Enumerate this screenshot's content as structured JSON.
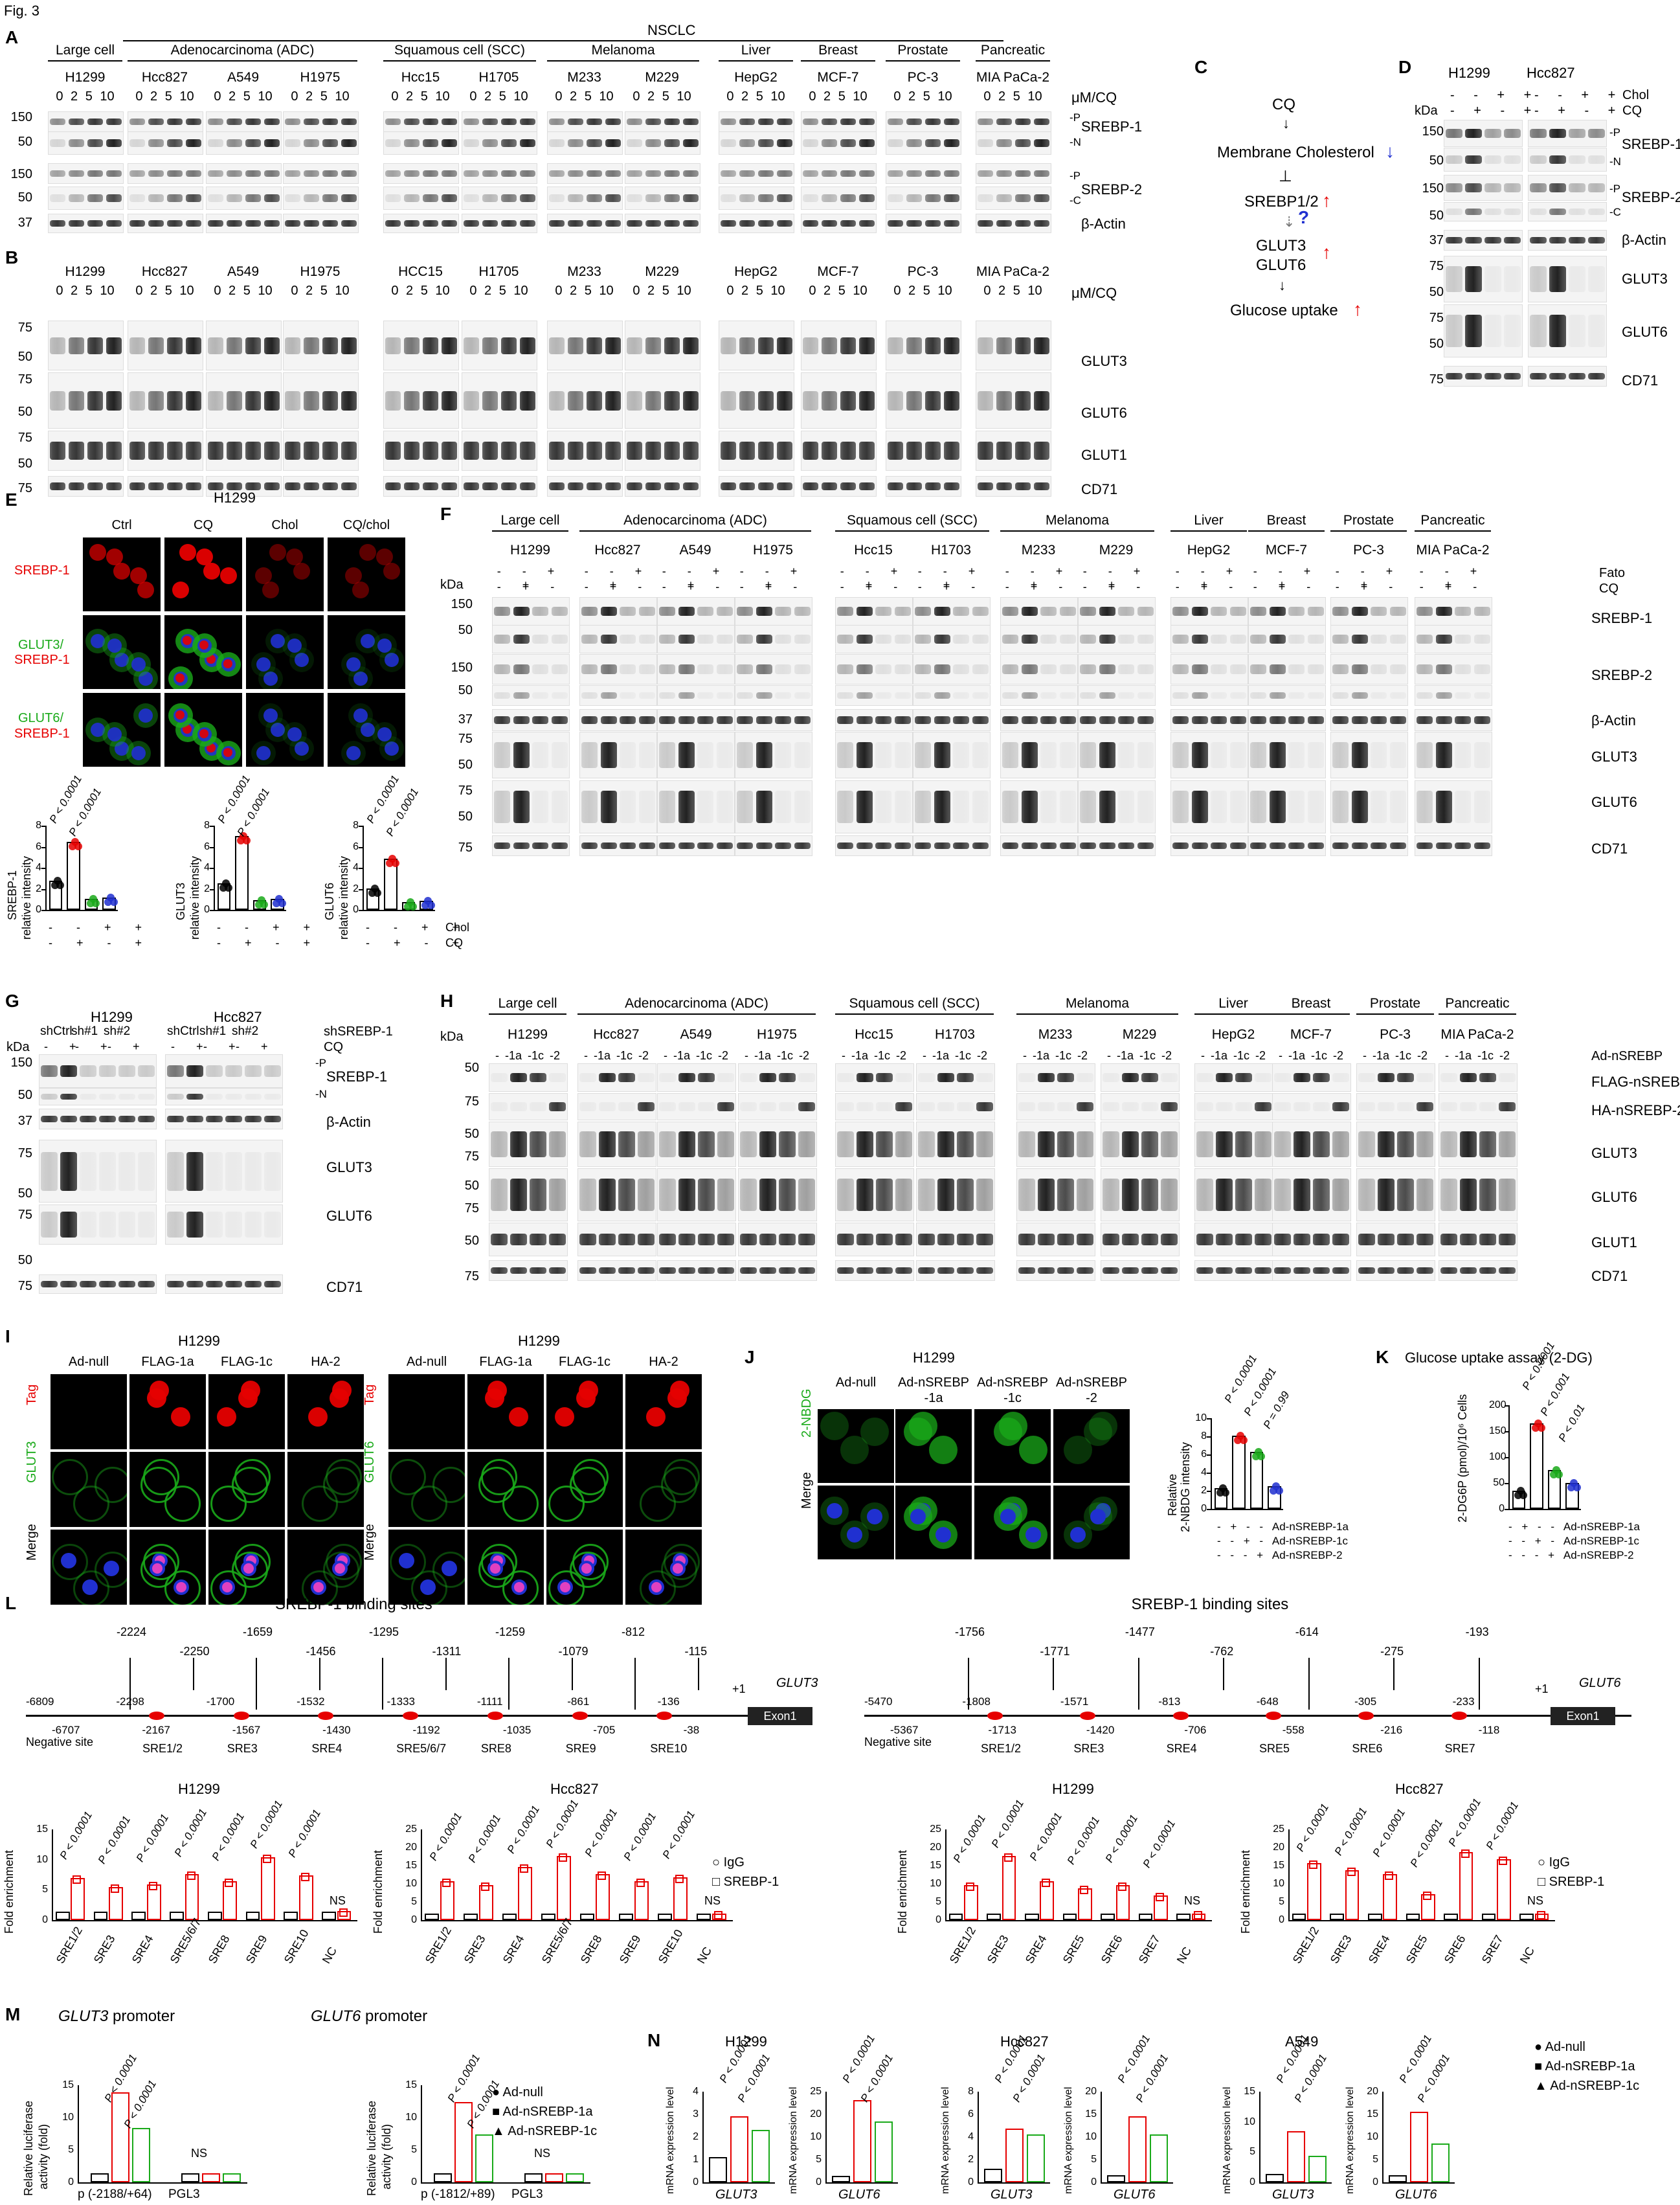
{
  "fig_label": "Fig. 3",
  "panels": {
    "A": "A",
    "B": "B",
    "C": "C",
    "D": "D",
    "E": "E",
    "F": "F",
    "G": "G",
    "H": "H",
    "I": "I",
    "J": "J",
    "K": "K",
    "L": "L",
    "M": "M",
    "N": "N"
  },
  "panel_A": {
    "nsclc": "NSCLC",
    "groups": [
      "Large cell",
      "Adenocarcinoma (ADC)",
      "Squamous cell (SCC)",
      "Melanoma",
      "Liver",
      "Breast",
      "Prostate",
      "Pancreatic"
    ],
    "lines": [
      "H1299",
      "Hcc827",
      "A549",
      "H1975",
      "Hcc15",
      "H1705",
      "M233",
      "M229",
      "HepG2",
      "MCF-7",
      "PC-3",
      "MIA PaCa-2"
    ],
    "doses": "0 2 5 10",
    "unit": "μM/CQ",
    "rows": [
      "SREBP-1",
      "SREBP-2",
      "β-Actin"
    ],
    "kda": [
      "150",
      "50",
      "150",
      "50",
      "37"
    ],
    "marks": [
      "-P",
      "-N",
      "-P",
      "-C"
    ]
  },
  "panel_B": {
    "lines": [
      "H1299",
      "Hcc827",
      "A549",
      "H1975",
      "HCC15",
      "H1705",
      "M233",
      "M229",
      "HepG2",
      "MCF-7",
      "PC-3",
      "MIA PaCa-2"
    ],
    "doses": "0 2 5 10",
    "unit": "μM/CQ",
    "rows": [
      "GLUT3",
      "GLUT6",
      "GLUT1",
      "CD71"
    ],
    "kda": [
      "75",
      "50",
      "75",
      "50",
      "75",
      "50",
      "75"
    ]
  },
  "panel_C": {
    "cq": "CQ",
    "chol": "Membrane Cholesterol",
    "srebp": "SREBP1/2",
    "q": "?",
    "glut3": "GLUT3",
    "glut6": "GLUT6",
    "uptake": "Glucose uptake"
  },
  "panel_D": {
    "lines": [
      "H1299",
      "Hcc827"
    ],
    "chol_label": "Chol",
    "cq_label": "CQ",
    "chol_signs": "- - + +",
    "cq_signs": "- + - +",
    "kda_label": "kDa",
    "rows": [
      "SREBP-1",
      "SREBP-2",
      "β-Actin",
      "GLUT3",
      "GLUT6",
      "CD71"
    ],
    "kda": [
      "150",
      "50",
      "150",
      "50",
      "37",
      "75",
      "50",
      "75",
      "50",
      "75"
    ],
    "marks": [
      "-P",
      "-N",
      "-P",
      "-C"
    ]
  },
  "panel_E": {
    "title": "H1299",
    "cols": [
      "Ctrl",
      "CQ",
      "Chol",
      "CQ/chol"
    ],
    "rows": [
      "SREBP-1",
      "GLUT3/",
      "SREBP-1",
      "GLUT6/",
      "SREBP-1"
    ],
    "charts": [
      {
        "ylabel1": "SREBP-1",
        "ylabel2": "relative intensity",
        "p1": "P < 0.0001",
        "p2": "P < 0.0001",
        "values": [
          2.5,
          6.2,
          0.8,
          0.9
        ],
        "yticks": [
          "0",
          "2",
          "4",
          "6",
          "8"
        ]
      },
      {
        "ylabel1": "GLUT3",
        "ylabel2": "relative intensity",
        "p1": "P < 0.0001",
        "p2": "P < 0.0001",
        "values": [
          2.3,
          6.8,
          0.7,
          0.8
        ],
        "yticks": [
          "0",
          "2",
          "4",
          "6",
          "8"
        ]
      },
      {
        "ylabel1": "GLUT6",
        "ylabel2": "relative intensity",
        "p1": "P < 0.0001",
        "p2": "P < 0.0001",
        "values": [
          1.8,
          4.6,
          0.5,
          0.6
        ],
        "yticks": [
          "0",
          "2",
          "4",
          "6",
          "8"
        ]
      }
    ],
    "chol_row": "- - + +",
    "cq_row": "- + - +",
    "chol_label": "Chol",
    "cq_label": "CQ"
  },
  "panel_F": {
    "groups": [
      "Large cell",
      "Adenocarcinoma (ADC)",
      "Squamous cell (SCC)",
      "Melanoma",
      "Liver",
      "Breast",
      "Prostate",
      "Pancreatic"
    ],
    "lines": [
      "H1299",
      "Hcc827",
      "A549",
      "H1975",
      "Hcc15",
      "H1703",
      "M233",
      "M229",
      "HepG2",
      "MCF-7",
      "PC-3",
      "MIA PaCa-2"
    ],
    "fato": "Fato",
    "cq": "CQ",
    "kda_label": "kDa",
    "rows": [
      "SREBP-1",
      "SREBP-2",
      "β-Actin",
      "GLUT3",
      "GLUT6",
      "CD71"
    ],
    "kda": [
      "150",
      "50",
      "150",
      "50",
      "37",
      "75",
      "50",
      "75",
      "50",
      "75"
    ],
    "marks": [
      "-P",
      "-N",
      "-P",
      "-C"
    ]
  },
  "panel_G": {
    "lines": [
      "H1299",
      "Hcc827"
    ],
    "sh": [
      "shCtrl",
      "sh#1",
      "sh#2"
    ],
    "shlabel": "shSREBP-1",
    "cq": "CQ",
    "kda_label": "kDa",
    "rows": [
      "SREBP-1",
      "β-Actin",
      "GLUT3",
      "GLUT6",
      "CD71"
    ],
    "kda": [
      "150",
      "50",
      "37",
      "75",
      "50",
      "75",
      "50",
      "75"
    ],
    "marks": [
      "-P",
      "-N"
    ]
  },
  "panel_H": {
    "groups": [
      "Large cell",
      "Adenocarcinoma (ADC)",
      "Squamous cell (SCC)",
      "Melanoma",
      "Liver",
      "Breast",
      "Prostate",
      "Pancreatic"
    ],
    "lines": [
      "H1299",
      "Hcc827",
      "A549",
      "H1975",
      "Hcc15",
      "H1703",
      "M233",
      "M229",
      "HepG2",
      "MCF-7",
      "PC-3",
      "MIA PaCa-2"
    ],
    "lanes": "- -1a -1c -2",
    "adlabel": "Ad-nSREBP",
    "kda_label": "kDa",
    "rows": [
      "FLAG-nSREBP-1",
      "HA-nSREBP-2",
      "GLUT3",
      "GLUT6",
      "GLUT1",
      "CD71"
    ],
    "kda": [
      "50",
      "75",
      "50",
      "75",
      "50",
      "75",
      "50",
      "75"
    ]
  },
  "panel_I": {
    "left": {
      "title": "H1299",
      "cols": [
        "Ad-null",
        "FLAG-1a",
        "FLAG-1c",
        "HA-2"
      ],
      "rows": [
        "Tag",
        "GLUT3",
        "Merge"
      ]
    },
    "right": {
      "title": "H1299",
      "cols": [
        "Ad-null",
        "FLAG-1a",
        "FLAG-1c",
        "HA-2"
      ],
      "rows": [
        "Tag",
        "GLUT6",
        "Merge"
      ]
    }
  },
  "panel_J": {
    "title": "H1299",
    "cols": [
      "Ad-null",
      "Ad-nSREBP\n-1a",
      "Ad-nSREBP\n-1c",
      "Ad-nSREBP\n-2"
    ],
    "rows": [
      "2-NBDG",
      "Merge"
    ],
    "ylabel1": "Relative",
    "ylabel2": "2-NBDG intensity",
    "p": [
      "P < 0.0001",
      "P < 0.0001",
      "P = 0.99"
    ],
    "values": [
      2.0,
      7.8,
      6.0,
      2.2
    ],
    "yticks": [
      "0",
      "2",
      "4",
      "6",
      "8",
      "10"
    ],
    "rows_signs": [
      "- + - - Ad-nSREBP-1a",
      "- - + - Ad-nSREBP-1c",
      "- - - + Ad-nSREBP-2"
    ]
  },
  "panel_K": {
    "title": "Glucose uptake assay (2-DG)",
    "ylabel": "2-DG6P (pmol)/10⁶ Cells",
    "p": [
      "P < 0.0001",
      "P < 0.001",
      "P < 0.01"
    ],
    "values": [
      30,
      160,
      70,
      45
    ],
    "yticks": [
      "0",
      "50",
      "100",
      "150",
      "200"
    ],
    "rows_signs": [
      "- + - - Ad-nSREBP-1a",
      "- - + - Ad-nSREBP-1c",
      "- - - + Ad-nSREBP-2"
    ]
  },
  "panel_L": {
    "left": {
      "title": "SREBP-1 binding sites",
      "gene": "GLUT3",
      "exon": "Exon1",
      "plus1": "+1",
      "neg": "Negative site",
      "top": [
        "-2224",
        "-2250",
        "-1659",
        "-1456",
        "-1295",
        "-1311",
        "-1259",
        "-1079",
        "-812",
        "-115"
      ],
      "mid": [
        "-6809",
        "-2298",
        "-1700",
        "-1532",
        "-1333",
        "-1111",
        "-861",
        "-136"
      ],
      "bot": [
        "-6707",
        "-2167",
        "-1567",
        "-1430",
        "-1192",
        "-1035",
        "-705",
        "-38"
      ],
      "sre": [
        "SRE1/2",
        "SRE3",
        "SRE4",
        "SRE5/6/7",
        "SRE8",
        "SRE9",
        "SRE10"
      ]
    },
    "right": {
      "title": "SREBP-1 binding sites",
      "gene": "GLUT6",
      "exon": "Exon1",
      "plus1": "+1",
      "neg": "Negative site",
      "top": [
        "-1756",
        "-1771",
        "-1477",
        "-762",
        "-614",
        "-275",
        "-193"
      ],
      "mid": [
        "-5470",
        "-1808",
        "-1571",
        "-813",
        "-648",
        "-305",
        "-233"
      ],
      "bot": [
        "-5367",
        "-1713",
        "-1420",
        "-706",
        "-558",
        "-216",
        "-118"
      ],
      "sre": [
        "SRE1/2",
        "SRE3",
        "SRE4",
        "SRE5",
        "SRE6",
        "SRE7"
      ]
    },
    "charts": [
      {
        "title": "H1299",
        "cats": [
          "SRE1/2",
          "SRE3",
          "SRE4",
          "SRE5/6/7",
          "SRE8",
          "SRE9",
          "SRE10",
          "NC"
        ],
        "igg": [
          1,
          1,
          1,
          1,
          1,
          1,
          1,
          1
        ],
        "srebp": [
          6.5,
          5,
          5.5,
          7.2,
          6,
          10,
          7,
          1.1
        ],
        "ymax": 15,
        "yticks": [
          "0",
          "5",
          "10",
          "15"
        ],
        "p": "P < 0.0001",
        "ns": "NS"
      },
      {
        "title": "Hcc827",
        "cats": [
          "SRE1/2",
          "SRE3",
          "SRE4",
          "SRE5/6/7",
          "SRE8",
          "SRE9",
          "SRE10",
          "NC"
        ],
        "igg": [
          1,
          1,
          1,
          1,
          1,
          1,
          1,
          1
        ],
        "srebp": [
          10,
          9,
          14,
          17,
          12,
          10,
          11,
          1.1
        ],
        "ymax": 25,
        "yticks": [
          "0",
          "5",
          "10",
          "15",
          "20",
          "25"
        ],
        "p": "P < 0.0001",
        "ns": "NS"
      },
      {
        "title": "H1299",
        "cats": [
          "SRE1/2",
          "SRE3",
          "SRE4",
          "SRE5",
          "SRE6",
          "SRE7",
          "NC"
        ],
        "igg": [
          1,
          1,
          1,
          1,
          1,
          1,
          1
        ],
        "srebp": [
          9,
          17,
          10,
          8,
          9,
          6,
          1.1
        ],
        "ymax": 25,
        "yticks": [
          "0",
          "5",
          "10",
          "15",
          "20",
          "25"
        ],
        "p": "P < 0.0001",
        "ns": "NS"
      },
      {
        "title": "Hcc827",
        "cats": [
          "SRE1/2",
          "SRE3",
          "SRE4",
          "SRE5",
          "SRE6",
          "SRE7",
          "NC"
        ],
        "igg": [
          1,
          1,
          1,
          1,
          1,
          1,
          1
        ],
        "srebp": [
          15,
          13,
          12,
          6.5,
          18,
          16,
          1.1
        ],
        "ymax": 25,
        "yticks": [
          "0",
          "5",
          "10",
          "15",
          "20",
          "25"
        ],
        "p": "P < 0.0001",
        "ns": "NS"
      }
    ],
    "legend": [
      "IgG",
      "SREBP-1"
    ],
    "ylabel": "Fold enrichment"
  },
  "panel_M": {
    "charts": [
      {
        "title_gene": "GLUT3",
        "title_rest": " promoter",
        "cats": [
          "p (-2188/+64)",
          "PGL3"
        ],
        "values": [
          [
            1,
            13.5,
            8
          ],
          [
            1,
            1,
            1
          ]
        ],
        "p": [
          "P < 0.0001",
          "P < 0.0001"
        ],
        "ns": "NS",
        "yticks": [
          "0",
          "5",
          "10",
          "15"
        ],
        "ymax": 15
      },
      {
        "title_gene": "GLUT6",
        "title_rest": " promoter",
        "cats": [
          "p (-1812/+89)",
          "PGL3"
        ],
        "values": [
          [
            1,
            12,
            7
          ],
          [
            1,
            1,
            1
          ]
        ],
        "p": [
          "P < 0.0001",
          "P < 0.0001"
        ],
        "ns": "NS",
        "yticks": [
          "0",
          "5",
          "10",
          "15"
        ],
        "ymax": 15
      }
    ],
    "ylabel1": "Relative luciferase",
    "ylabel2": "activity (fold)",
    "legend": [
      "Ad-null",
      "Ad-nSREBP-1a",
      "Ad-nSREBP-1c"
    ]
  },
  "panel_N": {
    "groups": [
      "H1299",
      "Hcc827",
      "A549"
    ],
    "charts": [
      {
        "gene": "GLUT3",
        "values": [
          1,
          2.8,
          2.2
        ],
        "yticks": [
          "0",
          "1",
          "2",
          "3",
          "4"
        ],
        "ymax": 4,
        "p": [
          "P < 0.0001",
          "P < 0.0001"
        ]
      },
      {
        "gene": "GLUT6",
        "values": [
          1,
          22,
          16
        ],
        "yticks": [
          "0",
          "5",
          "10",
          "20",
          "25"
        ],
        "ymax": 25,
        "p": [
          "P < 0.0001",
          "P < 0.0001"
        ]
      },
      {
        "gene": "GLUT3",
        "values": [
          1,
          4.5,
          4
        ],
        "yticks": [
          "0",
          "2",
          "4",
          "6",
          "8"
        ],
        "ymax": 8,
        "p": [
          "P < 0.0001",
          "P < 0.0001"
        ]
      },
      {
        "gene": "GLUT6",
        "values": [
          1,
          14,
          10
        ],
        "yticks": [
          "0",
          "5",
          "10",
          "15",
          "20"
        ],
        "ymax": 20,
        "p": [
          "P < 0.0001",
          "P < 0.0001"
        ]
      },
      {
        "gene": "GLUT3",
        "values": [
          1,
          8,
          4
        ],
        "yticks": [
          "0",
          "5",
          "10",
          "15"
        ],
        "ymax": 15,
        "p": [
          "P < 0.0001",
          "P < 0.0001"
        ]
      },
      {
        "gene": "GLUT6",
        "values": [
          1,
          15,
          8
        ],
        "yticks": [
          "0",
          "5",
          "10",
          "15",
          "20"
        ],
        "ymax": 20,
        "p": [
          "P < 0.0001",
          "P < 0.0001"
        ]
      }
    ],
    "ylabel": "mRNA expression level",
    "legend": [
      "Ad-null",
      "Ad-nSREBP-1a",
      "Ad-nSREBP-1c"
    ]
  },
  "colors": {
    "red": "#e60000",
    "green": "#1aaa1a",
    "blue": "#2030d0",
    "black": "#000000"
  }
}
